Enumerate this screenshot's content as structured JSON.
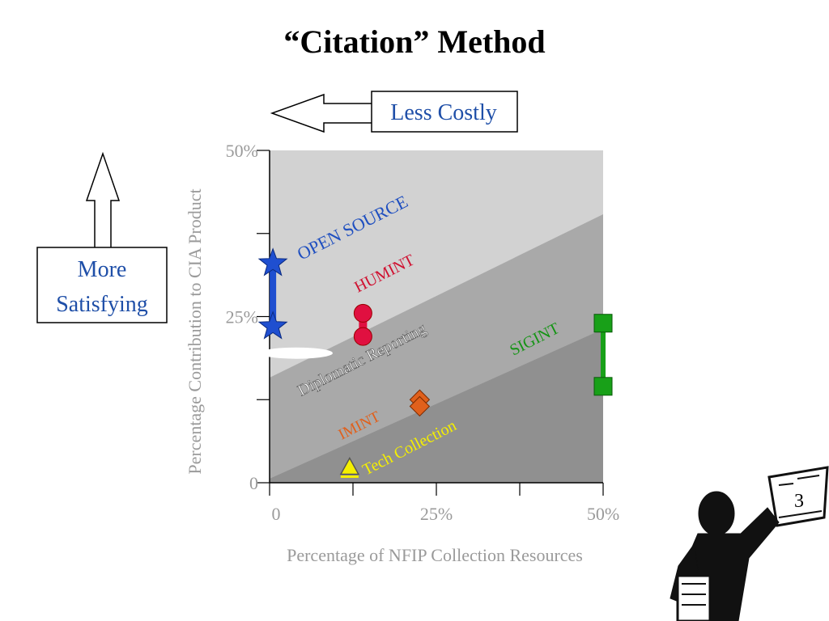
{
  "title": "“Citation” Method",
  "callouts": {
    "less_costly": "Less Costly",
    "more_satisfying_line1": "More",
    "more_satisfying_line2": "Satisfying"
  },
  "page_number": "3",
  "chart_data": {
    "type": "scatter",
    "xlabel": "Percentage of NFIP Collection Resources",
    "ylabel": "Percentage Contribution to CIA Product",
    "xlim": [
      0,
      50
    ],
    "ylim": [
      0,
      50
    ],
    "x_ticks": [
      {
        "value": 0,
        "label": "0"
      },
      {
        "value": 25,
        "label": "25%"
      },
      {
        "value": 50,
        "label": "50%"
      }
    ],
    "y_ticks": [
      {
        "value": 0,
        "label": "0"
      },
      {
        "value": 25,
        "label": "25%"
      },
      {
        "value": 50,
        "label": "50%"
      }
    ],
    "grid": false,
    "background_bands": [
      "#d2d2d2",
      "#a9a9a9",
      "#909090"
    ],
    "region_labels": [
      {
        "text": "OPEN SOURCE",
        "color": "#1f4fc0"
      },
      {
        "text": "HUMINT",
        "color": "#d01030"
      },
      {
        "text": "Diplomatic Reporting",
        "color": "#ffffff"
      },
      {
        "text": "SIGINT",
        "color": "#149414"
      },
      {
        "text": "IMINT",
        "color": "#e0601c"
      },
      {
        "text": "Tech Collection",
        "color": "#f5f000"
      }
    ],
    "series": [
      {
        "name": "OPEN SOURCE",
        "marker": "star",
        "color": "#1f4fd0",
        "points": [
          {
            "x": 0.5,
            "y": 33
          },
          {
            "x": 0.5,
            "y": 23.5
          }
        ]
      },
      {
        "name": "HUMINT",
        "marker": "circle",
        "color": "#e01040",
        "points": [
          {
            "x": 14,
            "y": 25.5
          },
          {
            "x": 14,
            "y": 22
          }
        ]
      },
      {
        "name": "Diplomatic Reporting",
        "marker": "ellipse",
        "color": "#ffffff",
        "points": [
          {
            "x": 4,
            "y": 19.5
          }
        ]
      },
      {
        "name": "SIGINT",
        "marker": "square",
        "color": "#18a018",
        "points": [
          {
            "x": 50,
            "y": 24
          },
          {
            "x": 50,
            "y": 14.5
          }
        ]
      },
      {
        "name": "IMINT",
        "marker": "diamond",
        "color": "#e0601c",
        "points": [
          {
            "x": 22.5,
            "y": 12.5
          },
          {
            "x": 22.5,
            "y": 11.5
          }
        ]
      },
      {
        "name": "Tech Collection",
        "marker": "triangle",
        "color": "#f5f000",
        "points": [
          {
            "x": 12,
            "y": 2
          }
        ]
      }
    ]
  }
}
